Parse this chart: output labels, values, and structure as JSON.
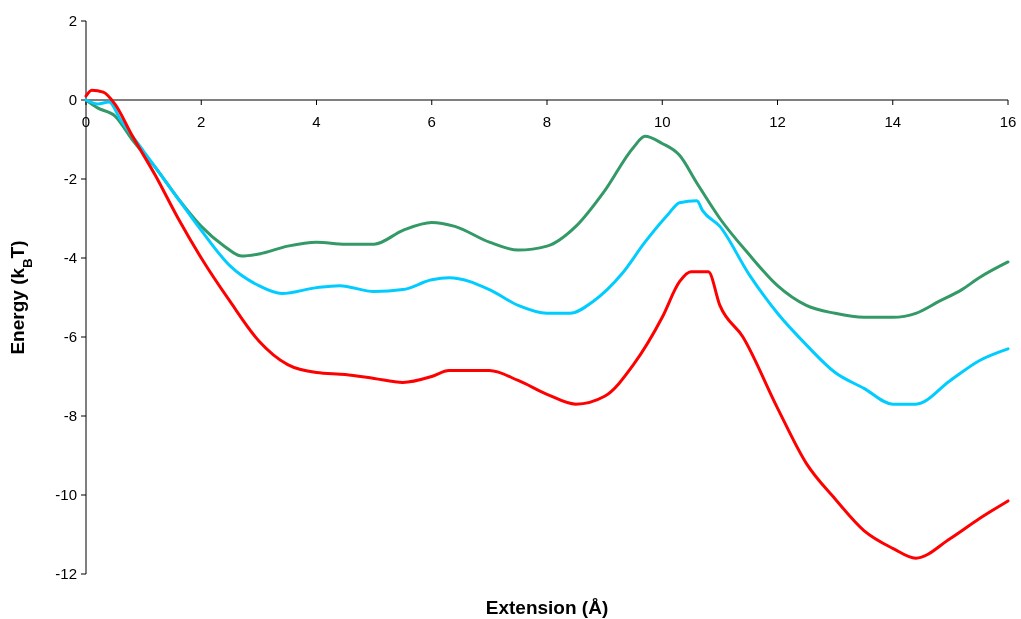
{
  "chart_data": {
    "type": "line",
    "xlabel": "Extension (Å)",
    "ylabel": "Energy (k$_{B}$T)",
    "xlim": [
      0,
      16
    ],
    "ylim": [
      -12,
      2
    ],
    "xticks": [
      0,
      2,
      4,
      6,
      8,
      10,
      12,
      14,
      16
    ],
    "yticks": [
      -12,
      -10,
      -8,
      -6,
      -4,
      -2,
      0,
      2
    ],
    "marker": "none",
    "line_style": "solid",
    "series": [
      {
        "color": "#339966",
        "x": [
          0,
          0.2,
          0.5,
          0.8,
          1.2,
          1.6,
          2,
          2.4,
          2.7,
          3,
          3.5,
          4,
          4.5,
          5,
          5.5,
          6,
          6.4,
          7,
          7.5,
          8,
          8.5,
          9,
          9.5,
          9.7,
          10,
          10.3,
          10.6,
          11,
          11.5,
          12,
          12.5,
          13,
          13.5,
          14,
          14.4,
          14.8,
          15.2,
          15.5,
          16
        ],
        "values": [
          0,
          -0.2,
          -0.4,
          -1.0,
          -1.7,
          -2.5,
          -3.2,
          -3.7,
          -3.95,
          -3.9,
          -3.7,
          -3.6,
          -3.65,
          -3.65,
          -3.3,
          -3.1,
          -3.2,
          -3.6,
          -3.8,
          -3.7,
          -3.2,
          -2.3,
          -1.2,
          -0.92,
          -1.1,
          -1.4,
          -2.1,
          -3.0,
          -3.9,
          -4.7,
          -5.2,
          -5.4,
          -5.5,
          -5.5,
          -5.4,
          -5.1,
          -4.8,
          -4.5,
          -4.1
        ]
      },
      {
        "color": "#00ccff",
        "x": [
          0,
          0.2,
          0.4,
          0.6,
          1,
          1.5,
          2,
          2.5,
          3,
          3.4,
          4,
          4.4,
          5,
          5.5,
          6,
          6.3,
          7,
          7.5,
          8,
          8.4,
          8.8,
          9.3,
          9.7,
          10.1,
          10.3,
          10.6,
          10.7,
          11,
          11.5,
          12,
          12.5,
          13,
          13.5,
          14,
          14.4,
          15,
          15.5,
          16
        ],
        "values": [
          0,
          -0.1,
          -0.05,
          -0.5,
          -1.3,
          -2.3,
          -3.3,
          -4.2,
          -4.7,
          -4.9,
          -4.75,
          -4.7,
          -4.85,
          -4.8,
          -4.55,
          -4.5,
          -4.8,
          -5.2,
          -5.4,
          -5.4,
          -5.1,
          -4.4,
          -3.6,
          -2.9,
          -2.6,
          -2.55,
          -2.8,
          -3.2,
          -4.4,
          -5.4,
          -6.2,
          -6.9,
          -7.3,
          -7.7,
          -7.7,
          -7.1,
          -6.6,
          -6.3
        ]
      },
      {
        "color": "#ff0000",
        "x": [
          0,
          0.1,
          0.3,
          0.5,
          0.8,
          1.2,
          1.6,
          2,
          2.5,
          3,
          3.5,
          4,
          4.5,
          5,
          5.5,
          6,
          6.3,
          7,
          7.5,
          8,
          8.5,
          9,
          9.5,
          10,
          10.3,
          10.5,
          10.8,
          11,
          11.4,
          12,
          12.5,
          13,
          13.5,
          14,
          14.4,
          15,
          15.5,
          16
        ],
        "values": [
          0.1,
          0.25,
          0.2,
          -0.1,
          -0.9,
          -1.9,
          -3.0,
          -4.0,
          -5.1,
          -6.1,
          -6.7,
          -6.9,
          -6.95,
          -7.05,
          -7.15,
          -7.0,
          -6.85,
          -6.85,
          -7.1,
          -7.45,
          -7.7,
          -7.5,
          -6.7,
          -5.5,
          -4.6,
          -4.35,
          -4.35,
          -5.2,
          -6.0,
          -7.8,
          -9.2,
          -10.1,
          -10.9,
          -11.35,
          -11.6,
          -11.1,
          -10.6,
          -10.15
        ]
      }
    ]
  }
}
